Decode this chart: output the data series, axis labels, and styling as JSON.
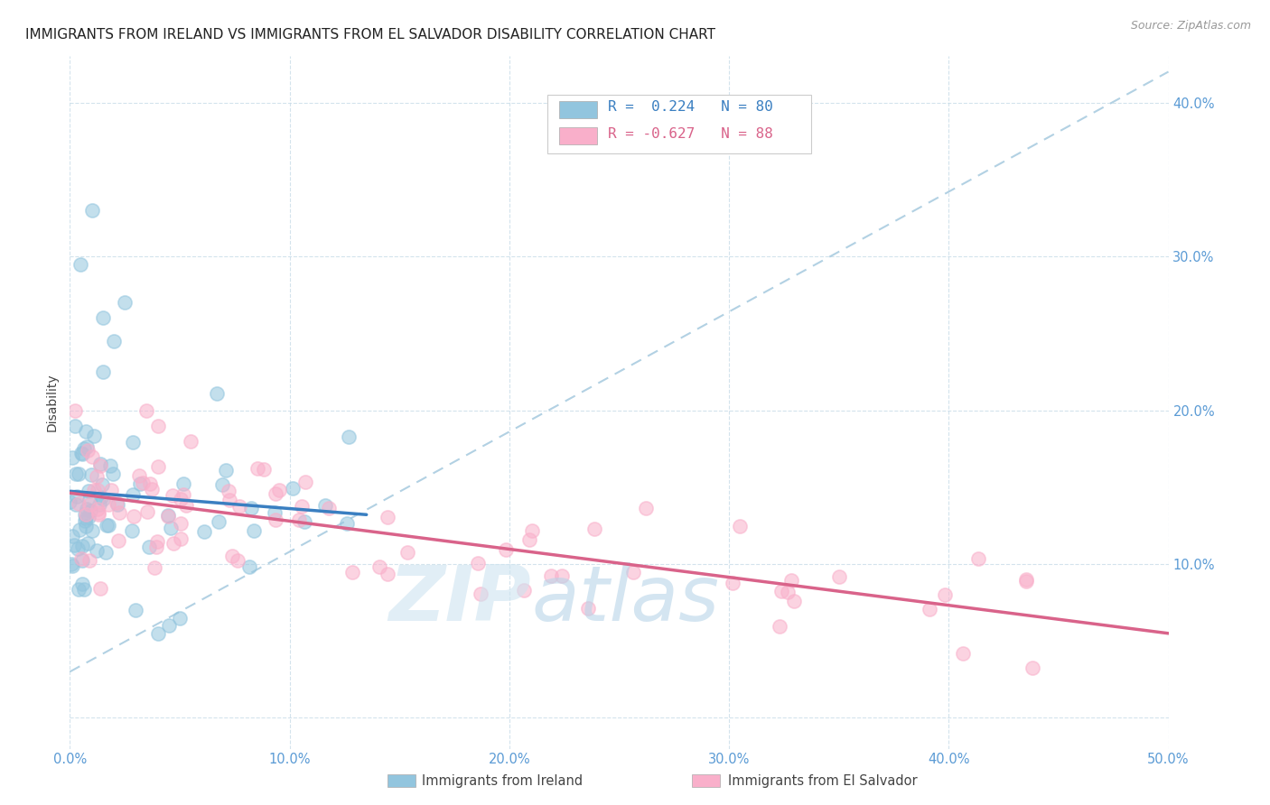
{
  "title": "IMMIGRANTS FROM IRELAND VS IMMIGRANTS FROM EL SALVADOR DISABILITY CORRELATION CHART",
  "source": "Source: ZipAtlas.com",
  "ylabel": "Disability",
  "xlim": [
    0.0,
    0.5
  ],
  "ylim": [
    -0.02,
    0.43
  ],
  "x_ticks": [
    0.0,
    0.1,
    0.2,
    0.3,
    0.4,
    0.5
  ],
  "x_tick_labels": [
    "0.0%",
    "10.0%",
    "20.0%",
    "30.0%",
    "40.0%",
    "50.0%"
  ],
  "y_ticks": [
    0.0,
    0.1,
    0.2,
    0.3,
    0.4
  ],
  "y_tick_labels": [
    "",
    "10.0%",
    "20.0%",
    "30.0%",
    "40.0%"
  ],
  "ireland_color": "#92C5DE",
  "salvador_color": "#F9AFCA",
  "ireland_R": 0.224,
  "ireland_N": 80,
  "salvador_R": -0.627,
  "salvador_N": 88,
  "ireland_line_color": "#3a7fc1",
  "salvador_line_color": "#d9638a",
  "dash_line_color": "#aacce0",
  "tick_color": "#5b9bd5",
  "background_color": "#ffffff",
  "grid_color": "#c8dce8",
  "legend_text_color": "#3a7fc1",
  "legend_neg_color": "#d9638a"
}
